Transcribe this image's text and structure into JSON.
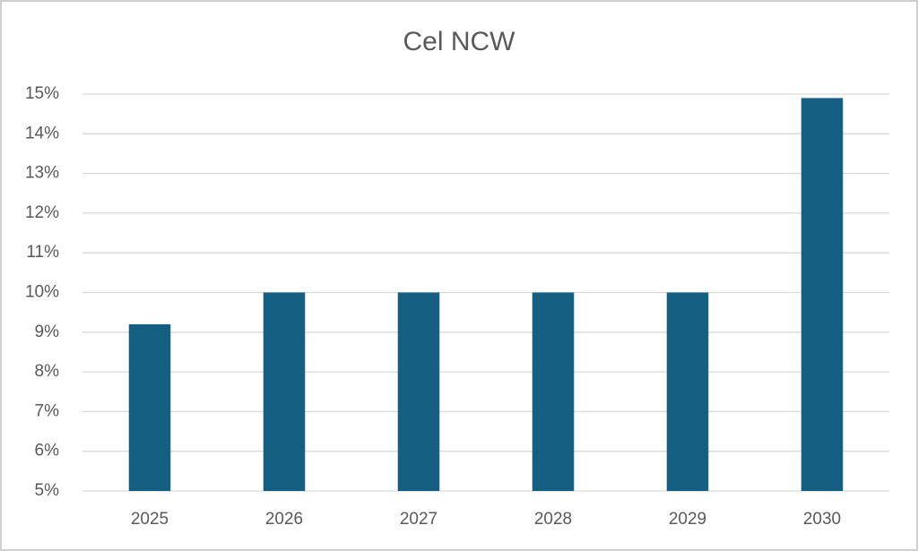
{
  "chart_data": {
    "type": "bar",
    "title": "Cel NCW",
    "categories": [
      "2025",
      "2026",
      "2027",
      "2028",
      "2029",
      "2030"
    ],
    "values": [
      9.2,
      10,
      10,
      10,
      10,
      14.9
    ],
    "color": "#156082",
    "ylim": [
      5,
      15
    ],
    "yticks": [
      {
        "value": 5,
        "label": "5%"
      },
      {
        "value": 6,
        "label": "6%"
      },
      {
        "value": 7,
        "label": "7%"
      },
      {
        "value": 8,
        "label": "8%"
      },
      {
        "value": 9,
        "label": "9%"
      },
      {
        "value": 10,
        "label": "10%"
      },
      {
        "value": 11,
        "label": "11%"
      },
      {
        "value": 12,
        "label": "12%"
      },
      {
        "value": 13,
        "label": "13%"
      },
      {
        "value": 14,
        "label": "14%"
      },
      {
        "value": 15,
        "label": "15%"
      }
    ],
    "grid": true
  }
}
